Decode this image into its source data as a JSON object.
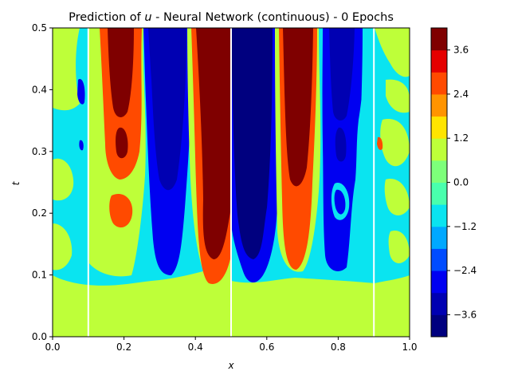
{
  "chart_data": {
    "type": "heatmap",
    "title_prefix": "Prediction of ",
    "title_symbol": "u",
    "title_suffix": " - Neural Network (continuous) - 0 Epochs",
    "xlabel": "x",
    "ylabel": "t",
    "xlim": [
      0,
      1
    ],
    "ylim": [
      0,
      0.5
    ],
    "xticks": [
      "0.0",
      "0.2",
      "0.4",
      "0.6",
      "0.8",
      "1.0"
    ],
    "yticks": [
      "0.0",
      "0.1",
      "0.2",
      "0.3",
      "0.4",
      "0.5"
    ],
    "colorbar": {
      "range": [
        -4.2,
        4.2
      ],
      "ticks": [
        "3.6",
        "2.4",
        "1.2",
        "0.0",
        "−1.2",
        "−2.4",
        "−3.6"
      ],
      "tick_values": [
        3.6,
        2.4,
        1.2,
        0.0,
        -1.2,
        -2.4,
        -3.6
      ],
      "levels": [
        {
          "from": -4.2,
          "to": -3.6,
          "color": "#00007f"
        },
        {
          "from": -3.6,
          "to": -3.0,
          "color": "#0000b2"
        },
        {
          "from": -3.0,
          "to": -2.4,
          "color": "#0000f1"
        },
        {
          "from": -2.4,
          "to": -1.8,
          "color": "#004cff"
        },
        {
          "from": -1.8,
          "to": -1.2,
          "color": "#00a8ff"
        },
        {
          "from": -1.2,
          "to": -0.6,
          "color": "#0ae4f0"
        },
        {
          "from": -0.6,
          "to": 0.0,
          "color": "#49ffad"
        },
        {
          "from": 0.0,
          "to": 0.6,
          "color": "#7dff7a"
        },
        {
          "from": 0.6,
          "to": 1.2,
          "color": "#beff39"
        },
        {
          "from": 1.2,
          "to": 1.8,
          "color": "#ffe500"
        },
        {
          "from": 1.8,
          "to": 2.4,
          "color": "#ff9400"
        },
        {
          "from": 2.4,
          "to": 3.0,
          "color": "#ff4a00"
        },
        {
          "from": 3.0,
          "to": 3.6,
          "color": "#e50000"
        },
        {
          "from": 3.6,
          "to": 4.2,
          "color": "#7f0000"
        }
      ]
    },
    "white_lines_x": [
      0.1,
      0.5,
      0.9
    ],
    "bands": [
      {
        "x0": 0.0,
        "x1": 0.1,
        "value": -0.9
      },
      {
        "x0": 0.1,
        "x1": 0.14,
        "value": 0.9
      },
      {
        "x0": 0.14,
        "x1": 0.225,
        "value": 3.3
      },
      {
        "x0": 0.225,
        "x1": 0.27,
        "value": 0.9
      },
      {
        "x0": 0.27,
        "x1": 0.36,
        "value": -3.3
      },
      {
        "x0": 0.36,
        "x1": 0.385,
        "value": 0.9
      },
      {
        "x0": 0.385,
        "x1": 0.5,
        "value": 3.9
      },
      {
        "x0": 0.5,
        "x1": 0.61,
        "value": -3.9
      },
      {
        "x0": 0.61,
        "x1": 0.64,
        "value": -0.9
      },
      {
        "x0": 0.64,
        "x1": 0.735,
        "value": 3.3
      },
      {
        "x0": 0.735,
        "x1": 0.775,
        "value": 0.9
      },
      {
        "x0": 0.775,
        "x1": 0.86,
        "value": -3.3
      },
      {
        "x0": 0.86,
        "x1": 0.9,
        "value": -0.9
      },
      {
        "x0": 0.9,
        "x1": 1.0,
        "value": 0.9
      }
    ]
  }
}
